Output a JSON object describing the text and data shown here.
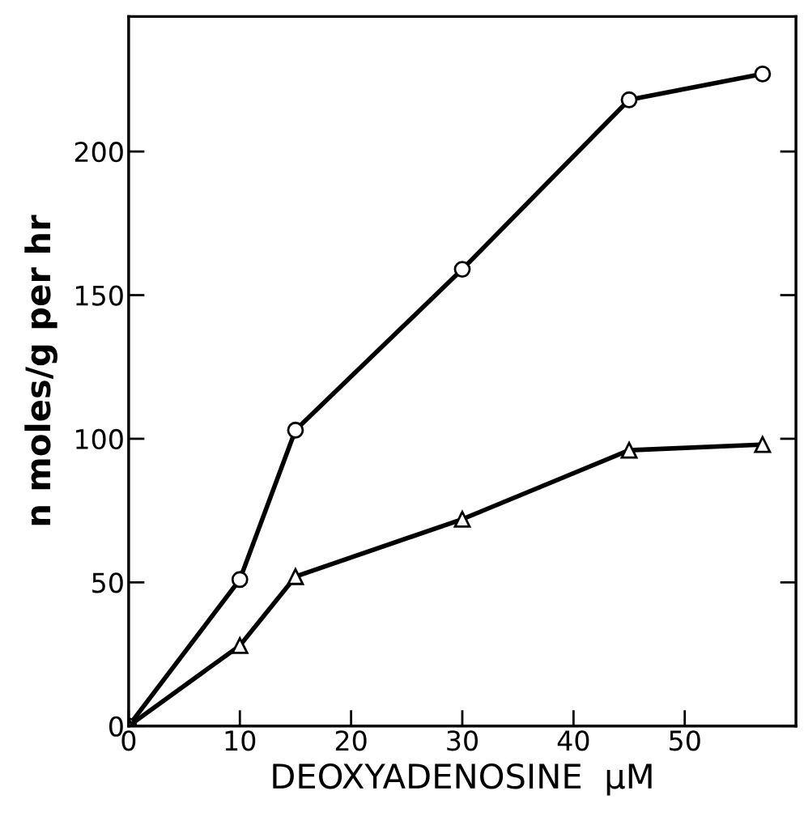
{
  "chart_data": {
    "type": "line",
    "xlabel": "DEOXYADENOSINE  μM",
    "ylabel": "n moles/g per hr",
    "x": [
      0,
      10,
      15,
      30,
      45,
      57
    ],
    "series": [
      {
        "color": "#000000",
        "marker": "circle",
        "values": [
          0,
          51,
          103,
          159,
          218,
          227
        ]
      },
      {
        "color": "#000000",
        "marker": "triangle",
        "values": [
          0,
          28,
          52,
          72,
          96,
          98
        ]
      }
    ],
    "xlim": [
      0,
      60
    ],
    "xticks": [
      0,
      10,
      20,
      30,
      40,
      50
    ],
    "ylim": [
      0,
      247
    ],
    "yticks": [
      0,
      50,
      100,
      150,
      200
    ],
    "grid": false,
    "legend": false
  }
}
